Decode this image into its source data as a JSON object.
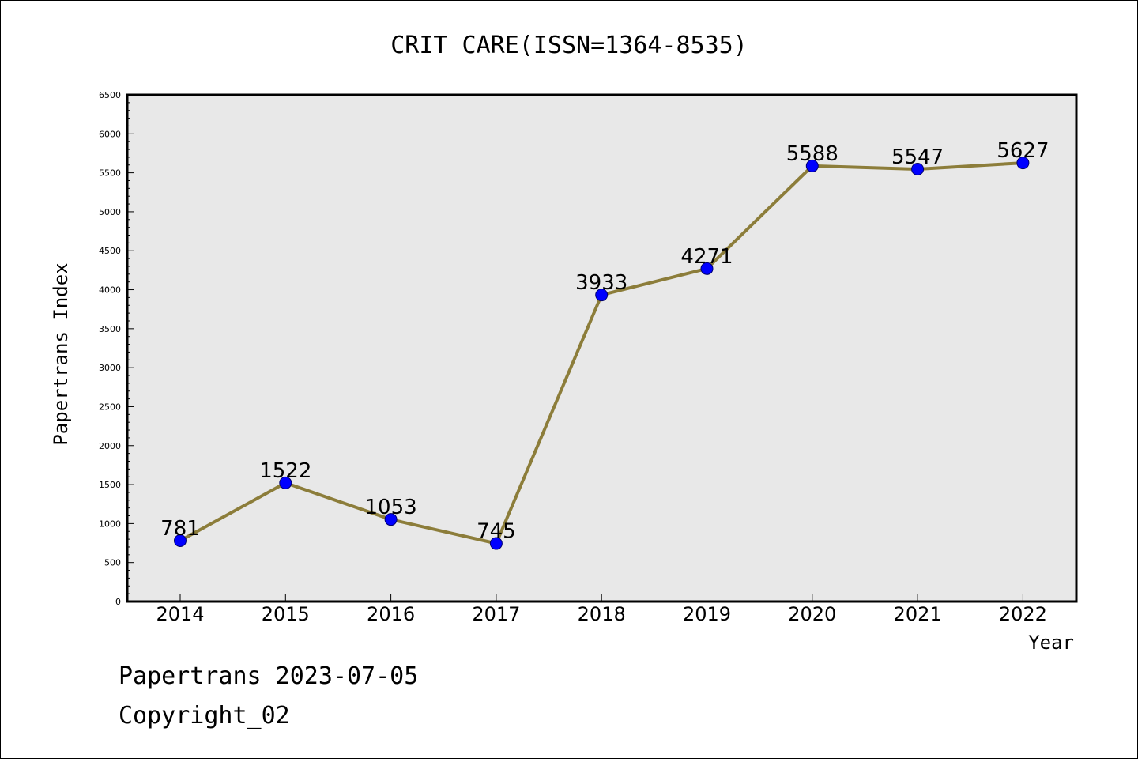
{
  "chart_data": {
    "type": "line",
    "title": "CRIT CARE(ISSN=1364-8535)",
    "xlabel": "Year",
    "ylabel": "Papertrans Index",
    "categories": [
      "2014",
      "2015",
      "2016",
      "2017",
      "2018",
      "2019",
      "2020",
      "2021",
      "2022"
    ],
    "values": [
      781,
      1522,
      1053,
      745,
      3933,
      4271,
      5588,
      5547,
      5627
    ],
    "ylim": [
      0,
      6500
    ],
    "yticks": [
      0,
      500,
      1000,
      1500,
      2000,
      2500,
      3000,
      3500,
      4000,
      4500,
      5000,
      5500,
      6000,
      6500
    ],
    "grid": false,
    "legend": "none",
    "colors": {
      "line": "#8c7d3a",
      "marker": "#0000ff",
      "marker_edge": "#00006e",
      "plot_background": "#e8e8e8"
    }
  },
  "footer": {
    "date_line": "Papertrans 2023-07-05",
    "copyright": "Copyright_02"
  }
}
